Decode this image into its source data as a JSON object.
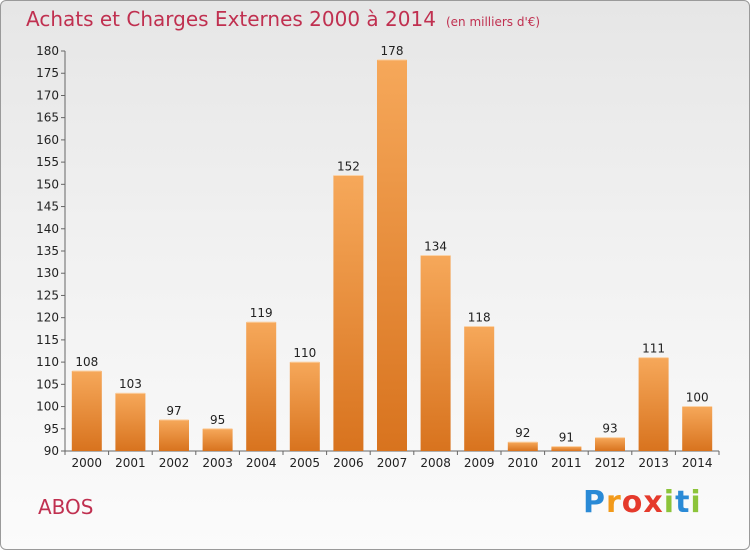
{
  "header": {
    "title": "Achats et Charges Externes 2000 à 2014",
    "unit": "(en milliers d'€)"
  },
  "footer": {
    "place": "ABOS",
    "logo": "Proxiti"
  },
  "logo_letters": [
    {
      "ch": "P",
      "color": "#2a8ad6"
    },
    {
      "ch": "r",
      "color": "#f29a1a"
    },
    {
      "ch": "o",
      "color": "#e53a2c"
    },
    {
      "ch": "x",
      "color": "#e53a2c"
    },
    {
      "ch": "i",
      "color": "#8cc43a"
    },
    {
      "ch": "t",
      "color": "#2a8ad6"
    },
    {
      "ch": "i",
      "color": "#8cc43a"
    }
  ],
  "colors": {
    "title": "#c03050",
    "bar_light": "#f6a85a",
    "bar_dark": "#d8731e"
  },
  "chart_data": {
    "type": "bar",
    "categories": [
      "2000",
      "2001",
      "2002",
      "2003",
      "2004",
      "2005",
      "2006",
      "2007",
      "2008",
      "2009",
      "2010",
      "2011",
      "2012",
      "2013",
      "2014"
    ],
    "values": [
      108,
      103,
      97,
      95,
      119,
      110,
      152,
      178,
      134,
      118,
      92,
      91,
      93,
      111,
      100
    ],
    "ylim": [
      90,
      180
    ],
    "ytick_step": 5,
    "grid": false,
    "legend": "none"
  }
}
